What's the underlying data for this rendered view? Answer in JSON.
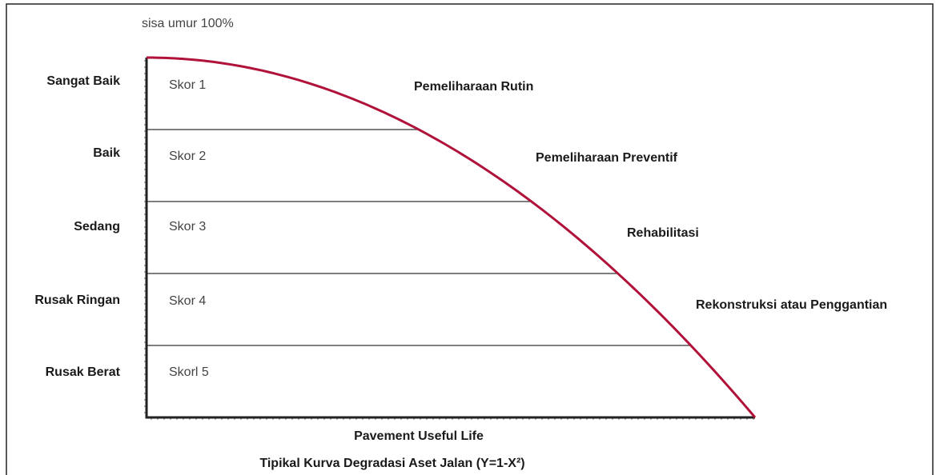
{
  "top_label": "sisa umur 100%",
  "conditions": [
    "Sangat Baik",
    "Baik",
    "Sedang",
    "Rusak Ringan",
    "Rusak Berat"
  ],
  "scores": [
    "Skor 1",
    "Skor 2",
    "Skor 3",
    "Skor 4",
    "Skorl 5"
  ],
  "treatments": [
    "Pemeliharaan Rutin",
    "Pemeliharaan Preventif",
    "Rehabilitasi",
    "Rekonstruksi atau Penggantian"
  ],
  "x_axis_label": "Pavement Useful Life",
  "caption": "Tipikal Kurva Degradasi Aset Jalan (Y=1-X²)"
}
